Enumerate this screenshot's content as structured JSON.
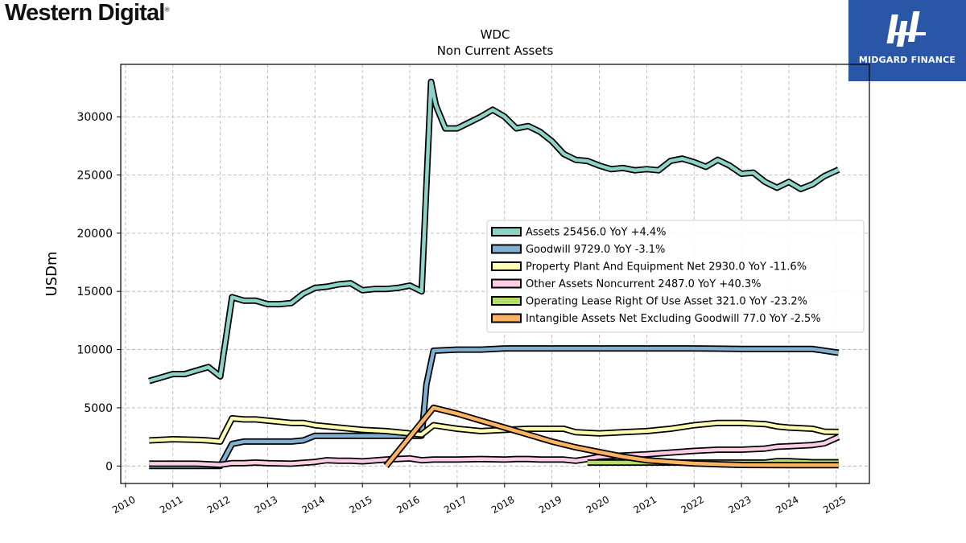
{
  "header": {
    "company_logo": "Western Digital",
    "brand": {
      "name": "MIDGARD FINANCE",
      "color": "#2a56a8"
    }
  },
  "chart_data": {
    "type": "line",
    "title": "WDC",
    "subtitle": "Non Current  Assets",
    "ylabel": "USDm",
    "xlabel": "",
    "xlim": [
      2009.9,
      2025.7
    ],
    "ylim": [
      -1500,
      34500
    ],
    "xticks": [
      2010,
      2011,
      2012,
      2013,
      2014,
      2015,
      2016,
      2017,
      2018,
      2019,
      2020,
      2021,
      2022,
      2023,
      2024,
      2025
    ],
    "yticks": [
      0,
      5000,
      10000,
      15000,
      20000,
      25000,
      30000
    ],
    "grid": true,
    "legend_position": "center-right",
    "series": [
      {
        "name": "Assets",
        "legend": "Assets  25456.0 YoY +4.4%",
        "color": "#8dd3c7",
        "x": [
          2010.5,
          2010.75,
          2011.0,
          2011.25,
          2011.5,
          2011.75,
          2012.0,
          2012.25,
          2012.5,
          2012.75,
          2013.0,
          2013.25,
          2013.5,
          2013.75,
          2014.0,
          2014.25,
          2014.5,
          2014.75,
          2015.0,
          2015.25,
          2015.5,
          2015.75,
          2016.0,
          2016.25,
          2016.45,
          2016.55,
          2016.75,
          2017.0,
          2017.25,
          2017.5,
          2017.75,
          2018.0,
          2018.25,
          2018.5,
          2018.75,
          2019.0,
          2019.25,
          2019.5,
          2019.75,
          2020.0,
          2020.25,
          2020.5,
          2020.75,
          2021.0,
          2021.25,
          2021.5,
          2021.75,
          2022.0,
          2022.25,
          2022.5,
          2022.75,
          2023.0,
          2023.25,
          2023.5,
          2023.75,
          2024.0,
          2024.25,
          2024.5,
          2024.75,
          2025.05
        ],
        "y": [
          7300,
          7600,
          7900,
          7900,
          8200,
          8500,
          7700,
          14500,
          14200,
          14200,
          13900,
          13900,
          14000,
          14800,
          15300,
          15400,
          15600,
          15700,
          15100,
          15200,
          15200,
          15300,
          15500,
          15000,
          33000,
          31000,
          29000,
          29000,
          29500,
          30000,
          30600,
          30000,
          29000,
          29200,
          28700,
          27900,
          26800,
          26300,
          26200,
          25800,
          25500,
          25600,
          25400,
          25500,
          25400,
          26200,
          26400,
          26100,
          25700,
          26300,
          25800,
          25100,
          25200,
          24400,
          23900,
          24400,
          23800,
          24200,
          24900,
          25456
        ]
      },
      {
        "name": "Goodwill",
        "legend": "Goodwill  9729.0 YoY -3.1%",
        "color": "#80b1d3",
        "x": [
          2010.5,
          2011.0,
          2011.5,
          2011.75,
          2012.0,
          2012.25,
          2012.5,
          2012.75,
          2013.0,
          2013.25,
          2013.5,
          2013.75,
          2014.0,
          2014.5,
          2015.0,
          2015.25,
          2015.5,
          2015.75,
          2016.0,
          2016.25,
          2016.35,
          2016.5,
          2017.0,
          2017.5,
          2018.0,
          2019.0,
          2020.0,
          2021.0,
          2022.0,
          2023.0,
          2024.0,
          2024.5,
          2025.05
        ],
        "y": [
          0,
          0,
          0,
          0,
          0,
          1900,
          2100,
          2100,
          2100,
          2100,
          2100,
          2200,
          2600,
          2600,
          2600,
          2600,
          2600,
          2600,
          2600,
          2600,
          7000,
          9900,
          10000,
          10000,
          10100,
          10100,
          10100,
          10100,
          10100,
          10050,
          10050,
          10050,
          9729
        ]
      },
      {
        "name": "Property Plant And Equipment Net",
        "legend": "Property Plant And Equipment Net  2930.0 YoY -11.6%",
        "color": "#ffffb3",
        "x": [
          2010.5,
          2011.0,
          2011.5,
          2011.75,
          2012.0,
          2012.25,
          2012.5,
          2012.75,
          2013.0,
          2013.5,
          2013.75,
          2014.0,
          2014.5,
          2015.0,
          2015.5,
          2016.0,
          2016.25,
          2016.5,
          2017.0,
          2017.5,
          2018.0,
          2018.5,
          2019.0,
          2019.25,
          2019.5,
          2020.0,
          2020.5,
          2021.0,
          2021.5,
          2022.0,
          2022.5,
          2022.75,
          2023.0,
          2023.5,
          2023.75,
          2024.0,
          2024.5,
          2024.75,
          2025.05
        ],
        "y": [
          2200,
          2300,
          2250,
          2200,
          2100,
          4100,
          4000,
          4000,
          3900,
          3700,
          3700,
          3500,
          3300,
          3100,
          3000,
          2800,
          2700,
          3500,
          3200,
          3000,
          3100,
          3200,
          3200,
          3200,
          2900,
          2800,
          2900,
          3000,
          3200,
          3500,
          3700,
          3700,
          3700,
          3600,
          3400,
          3300,
          3200,
          2950,
          2930
        ]
      },
      {
        "name": "Other Assets Noncurrent",
        "legend": "Other Assets Noncurrent  2487.0 YoY +40.3%",
        "color": "#fccde5",
        "x": [
          2010.5,
          2011.0,
          2011.5,
          2012.0,
          2012.25,
          2012.5,
          2012.75,
          2013.0,
          2013.5,
          2014.0,
          2014.25,
          2014.5,
          2014.75,
          2015.0,
          2015.5,
          2016.0,
          2016.25,
          2016.5,
          2017.0,
          2017.5,
          2018.0,
          2018.25,
          2018.5,
          2018.75,
          2019.0,
          2019.25,
          2019.5,
          2019.75,
          2020.0,
          2020.5,
          2021.0,
          2021.5,
          2022.0,
          2022.5,
          2023.0,
          2023.5,
          2023.75,
          2024.0,
          2024.5,
          2024.75,
          2025.05
        ],
        "y": [
          200,
          200,
          200,
          100,
          250,
          250,
          300,
          250,
          200,
          350,
          500,
          450,
          450,
          400,
          550,
          650,
          500,
          550,
          550,
          600,
          550,
          600,
          600,
          550,
          550,
          550,
          450,
          600,
          800,
          900,
          1000,
          1150,
          1300,
          1400,
          1400,
          1500,
          1650,
          1700,
          1800,
          1950,
          2487
        ]
      },
      {
        "name": "Operating Lease Right Of Use Asset",
        "legend": "Operating Lease Right Of Use Asset  321.0 YoY -23.2%",
        "color": "#b3de69",
        "x": [
          2019.75,
          2020.0,
          2020.5,
          2021.0,
          2021.5,
          2022.0,
          2022.5,
          2023.0,
          2023.5,
          2023.75,
          2024.0,
          2024.5,
          2025.05
        ],
        "y": [
          300,
          300,
          300,
          300,
          300,
          300,
          300,
          300,
          300,
          420,
          420,
          321,
          321
        ]
      },
      {
        "name": "Intangible Assets Net Excluding Goodwill",
        "legend": "Intangible Assets Net Excluding Goodwill  77.0 YoY -2.5%",
        "color": "#fdb462",
        "x": [
          2015.5,
          2016.0,
          2016.5,
          2017.0,
          2017.5,
          2018.0,
          2018.5,
          2019.0,
          2019.5,
          2020.0,
          2020.5,
          2021.0,
          2021.5,
          2022.0,
          2022.5,
          2023.0,
          2023.5,
          2024.0,
          2024.5,
          2025.05
        ],
        "y": [
          0,
          2500,
          5000,
          4500,
          3900,
          3300,
          2700,
          2100,
          1600,
          1200,
          800,
          500,
          350,
          220,
          150,
          90,
          80,
          77,
          77,
          77
        ]
      }
    ]
  }
}
